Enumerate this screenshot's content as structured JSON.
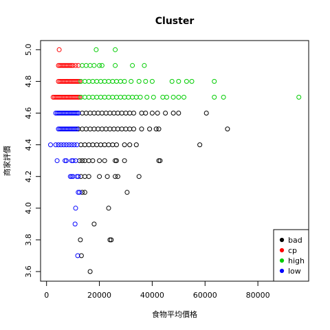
{
  "chart_data": {
    "type": "scatter",
    "title": "Cluster",
    "xlabel": "食物平均價格",
    "ylabel": "商家評價",
    "xlim": [
      0,
      100000
    ],
    "ylim": [
      3.55,
      5.05
    ],
    "x_ticks": [
      0,
      20000,
      40000,
      60000,
      80000
    ],
    "y_ticks": [
      3.6,
      3.8,
      4.0,
      4.2,
      4.4,
      4.6,
      4.8,
      5.0
    ],
    "legend_position": "bottom-right",
    "grid": false,
    "marker": "open-circle",
    "series": [
      {
        "name": "bad",
        "color": "#000000",
        "points": [
          [
            12000,
            4.6
          ],
          [
            13500,
            4.6
          ],
          [
            15000,
            4.6
          ],
          [
            16500,
            4.6
          ],
          [
            18000,
            4.6
          ],
          [
            19500,
            4.6
          ],
          [
            21000,
            4.6
          ],
          [
            22500,
            4.6
          ],
          [
            24000,
            4.6
          ],
          [
            25500,
            4.6
          ],
          [
            27000,
            4.6
          ],
          [
            28500,
            4.6
          ],
          [
            30000,
            4.6
          ],
          [
            31500,
            4.6
          ],
          [
            33000,
            4.6
          ],
          [
            36000,
            4.6
          ],
          [
            37500,
            4.6
          ],
          [
            40000,
            4.6
          ],
          [
            42000,
            4.6
          ],
          [
            45000,
            4.6
          ],
          [
            48000,
            4.6
          ],
          [
            50000,
            4.6
          ],
          [
            60500,
            4.6
          ],
          [
            12000,
            4.5
          ],
          [
            13500,
            4.5
          ],
          [
            15000,
            4.5
          ],
          [
            16500,
            4.5
          ],
          [
            18000,
            4.5
          ],
          [
            19500,
            4.5
          ],
          [
            21000,
            4.5
          ],
          [
            22500,
            4.5
          ],
          [
            24000,
            4.5
          ],
          [
            25500,
            4.5
          ],
          [
            27000,
            4.5
          ],
          [
            28500,
            4.5
          ],
          [
            30000,
            4.5
          ],
          [
            31500,
            4.5
          ],
          [
            33000,
            4.5
          ],
          [
            36000,
            4.5
          ],
          [
            39000,
            4.5
          ],
          [
            41500,
            4.5
          ],
          [
            42500,
            4.5
          ],
          [
            68500,
            4.5
          ],
          [
            13000,
            4.4
          ],
          [
            14500,
            4.4
          ],
          [
            16000,
            4.4
          ],
          [
            17500,
            4.4
          ],
          [
            19000,
            4.4
          ],
          [
            20500,
            4.4
          ],
          [
            22000,
            4.4
          ],
          [
            23500,
            4.4
          ],
          [
            25000,
            4.4
          ],
          [
            26500,
            4.4
          ],
          [
            29500,
            4.4
          ],
          [
            31500,
            4.4
          ],
          [
            34000,
            4.4
          ],
          [
            58000,
            4.4
          ],
          [
            12500,
            4.3
          ],
          [
            13500,
            4.3
          ],
          [
            14500,
            4.3
          ],
          [
            16000,
            4.3
          ],
          [
            17500,
            4.3
          ],
          [
            20000,
            4.3
          ],
          [
            22000,
            4.3
          ],
          [
            26000,
            4.3
          ],
          [
            26500,
            4.3
          ],
          [
            29500,
            4.3
          ],
          [
            42500,
            4.3
          ],
          [
            43000,
            4.3
          ],
          [
            13000,
            4.2
          ],
          [
            14500,
            4.2
          ],
          [
            16000,
            4.2
          ],
          [
            20000,
            4.2
          ],
          [
            23000,
            4.2
          ],
          [
            26000,
            4.2
          ],
          [
            27000,
            4.2
          ],
          [
            35000,
            4.2
          ],
          [
            13500,
            4.1
          ],
          [
            14500,
            4.1
          ],
          [
            30500,
            4.1
          ],
          [
            23500,
            4.0
          ],
          [
            18000,
            3.9
          ],
          [
            12800,
            3.8
          ],
          [
            24000,
            3.8
          ],
          [
            24500,
            3.8
          ],
          [
            13200,
            3.7
          ],
          [
            16500,
            3.6
          ]
        ]
      },
      {
        "name": "cp",
        "color": "#ff0000",
        "points": [
          [
            4800,
            5.0
          ],
          [
            4500,
            4.9
          ],
          [
            5000,
            4.9
          ],
          [
            5500,
            4.9
          ],
          [
            6000,
            4.9
          ],
          [
            6500,
            4.9
          ],
          [
            7000,
            4.9
          ],
          [
            7500,
            4.9
          ],
          [
            8000,
            4.9
          ],
          [
            8500,
            4.9
          ],
          [
            9000,
            4.9
          ],
          [
            9500,
            4.9
          ],
          [
            10000,
            4.9
          ],
          [
            11000,
            4.9
          ],
          [
            12000,
            4.9
          ],
          [
            4500,
            4.8
          ],
          [
            5000,
            4.8
          ],
          [
            5500,
            4.8
          ],
          [
            6000,
            4.8
          ],
          [
            6500,
            4.8
          ],
          [
            7000,
            4.8
          ],
          [
            7500,
            4.8
          ],
          [
            8000,
            4.8
          ],
          [
            8500,
            4.8
          ],
          [
            9000,
            4.8
          ],
          [
            9500,
            4.8
          ],
          [
            10000,
            4.8
          ],
          [
            10500,
            4.8
          ],
          [
            11000,
            4.8
          ],
          [
            11500,
            4.8
          ],
          [
            12000,
            4.8
          ],
          [
            12500,
            4.8
          ],
          [
            2500,
            4.7
          ],
          [
            3000,
            4.7
          ],
          [
            3500,
            4.7
          ],
          [
            4000,
            4.7
          ],
          [
            4500,
            4.7
          ],
          [
            5000,
            4.7
          ],
          [
            5500,
            4.7
          ],
          [
            6000,
            4.7
          ],
          [
            6500,
            4.7
          ],
          [
            7000,
            4.7
          ],
          [
            7500,
            4.7
          ],
          [
            8000,
            4.7
          ],
          [
            8500,
            4.7
          ],
          [
            9000,
            4.7
          ],
          [
            9500,
            4.7
          ],
          [
            10000,
            4.7
          ],
          [
            10500,
            4.7
          ],
          [
            11000,
            4.7
          ],
          [
            11500,
            4.7
          ],
          [
            12000,
            4.7
          ],
          [
            12500,
            4.7
          ]
        ]
      },
      {
        "name": "high",
        "color": "#00cc00",
        "points": [
          [
            18800,
            5.0
          ],
          [
            26000,
            5.0
          ],
          [
            13500,
            4.9
          ],
          [
            15000,
            4.9
          ],
          [
            16500,
            4.9
          ],
          [
            18000,
            4.9
          ],
          [
            20000,
            4.9
          ],
          [
            21000,
            4.9
          ],
          [
            26000,
            4.9
          ],
          [
            32500,
            4.9
          ],
          [
            37000,
            4.9
          ],
          [
            13000,
            4.8
          ],
          [
            14500,
            4.8
          ],
          [
            16000,
            4.8
          ],
          [
            17500,
            4.8
          ],
          [
            19000,
            4.8
          ],
          [
            20500,
            4.8
          ],
          [
            22000,
            4.8
          ],
          [
            23500,
            4.8
          ],
          [
            25000,
            4.8
          ],
          [
            26500,
            4.8
          ],
          [
            28000,
            4.8
          ],
          [
            29500,
            4.8
          ],
          [
            32000,
            4.8
          ],
          [
            35000,
            4.8
          ],
          [
            37500,
            4.8
          ],
          [
            40000,
            4.8
          ],
          [
            47500,
            4.8
          ],
          [
            50000,
            4.8
          ],
          [
            53000,
            4.8
          ],
          [
            55000,
            4.8
          ],
          [
            63500,
            4.8
          ],
          [
            13000,
            4.7
          ],
          [
            14500,
            4.7
          ],
          [
            16000,
            4.7
          ],
          [
            17500,
            4.7
          ],
          [
            19000,
            4.7
          ],
          [
            20500,
            4.7
          ],
          [
            22000,
            4.7
          ],
          [
            23500,
            4.7
          ],
          [
            25000,
            4.7
          ],
          [
            26500,
            4.7
          ],
          [
            28000,
            4.7
          ],
          [
            29500,
            4.7
          ],
          [
            31000,
            4.7
          ],
          [
            32500,
            4.7
          ],
          [
            34000,
            4.7
          ],
          [
            35500,
            4.7
          ],
          [
            38000,
            4.7
          ],
          [
            40500,
            4.7
          ],
          [
            44000,
            4.7
          ],
          [
            45500,
            4.7
          ],
          [
            48000,
            4.7
          ],
          [
            50000,
            4.7
          ],
          [
            52000,
            4.7
          ],
          [
            63500,
            4.7
          ],
          [
            67000,
            4.7
          ],
          [
            95500,
            4.7
          ]
        ]
      },
      {
        "name": "low",
        "color": "#0000ff",
        "points": [
          [
            3500,
            4.6
          ],
          [
            4000,
            4.6
          ],
          [
            4500,
            4.6
          ],
          [
            5000,
            4.6
          ],
          [
            5500,
            4.6
          ],
          [
            6000,
            4.6
          ],
          [
            6500,
            4.6
          ],
          [
            7000,
            4.6
          ],
          [
            7500,
            4.6
          ],
          [
            8000,
            4.6
          ],
          [
            8500,
            4.6
          ],
          [
            9000,
            4.6
          ],
          [
            9500,
            4.6
          ],
          [
            10000,
            4.6
          ],
          [
            10500,
            4.6
          ],
          [
            11000,
            4.6
          ],
          [
            11500,
            4.6
          ],
          [
            12000,
            4.6
          ],
          [
            4500,
            4.5
          ],
          [
            5000,
            4.5
          ],
          [
            5500,
            4.5
          ],
          [
            6000,
            4.5
          ],
          [
            6500,
            4.5
          ],
          [
            7000,
            4.5
          ],
          [
            7500,
            4.5
          ],
          [
            8000,
            4.5
          ],
          [
            8500,
            4.5
          ],
          [
            9000,
            4.5
          ],
          [
            9500,
            4.5
          ],
          [
            10000,
            4.5
          ],
          [
            10500,
            4.5
          ],
          [
            11000,
            4.5
          ],
          [
            11500,
            4.5
          ],
          [
            1500,
            4.4
          ],
          [
            3500,
            4.4
          ],
          [
            4500,
            4.4
          ],
          [
            5500,
            4.4
          ],
          [
            6500,
            4.4
          ],
          [
            7500,
            4.4
          ],
          [
            8500,
            4.4
          ],
          [
            9500,
            4.4
          ],
          [
            10500,
            4.4
          ],
          [
            11500,
            4.4
          ],
          [
            4000,
            4.3
          ],
          [
            7000,
            4.3
          ],
          [
            7500,
            4.3
          ],
          [
            9500,
            4.3
          ],
          [
            10000,
            4.3
          ],
          [
            11000,
            4.3
          ],
          [
            9000,
            4.2
          ],
          [
            9500,
            4.2
          ],
          [
            10000,
            4.2
          ],
          [
            11500,
            4.2
          ],
          [
            12000,
            4.2
          ],
          [
            12000,
            4.1
          ],
          [
            12500,
            4.1
          ],
          [
            11000,
            4.0
          ],
          [
            10800,
            3.9
          ],
          [
            11800,
            3.7
          ]
        ]
      }
    ]
  }
}
